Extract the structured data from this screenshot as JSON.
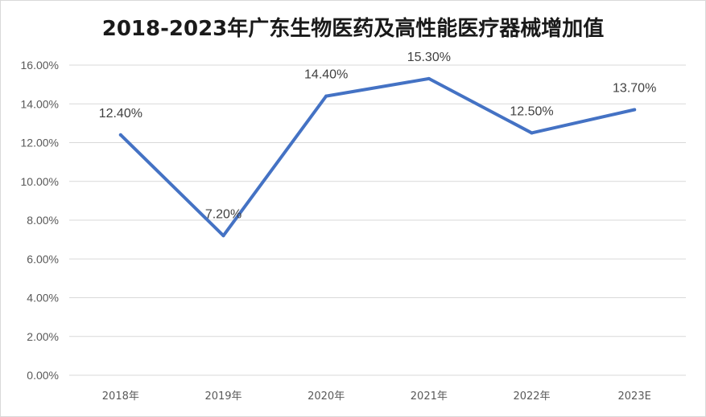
{
  "chart_data": {
    "type": "line",
    "title": "2018-2023年广东生物医药及高性能医疗器械增加值",
    "categories": [
      "2018年",
      "2019年",
      "2020年",
      "2021年",
      "2022年",
      "2023E"
    ],
    "series": [
      {
        "values": [
          12.4,
          7.2,
          14.4,
          15.3,
          12.5,
          13.7
        ],
        "labels": [
          "12.40%",
          "7.20%",
          "14.40%",
          "15.30%",
          "12.50%",
          "13.70%"
        ]
      }
    ],
    "ylim": [
      0,
      16
    ],
    "yticks": [
      0,
      2,
      4,
      6,
      8,
      10,
      12,
      14,
      16
    ],
    "ytick_labels": [
      "0.00%",
      "2.00%",
      "4.00%",
      "6.00%",
      "8.00%",
      "10.00%",
      "12.00%",
      "14.00%",
      "16.00%"
    ],
    "grid": true,
    "line_color": "#4472C4",
    "grid_color": "#d9d9d9"
  }
}
